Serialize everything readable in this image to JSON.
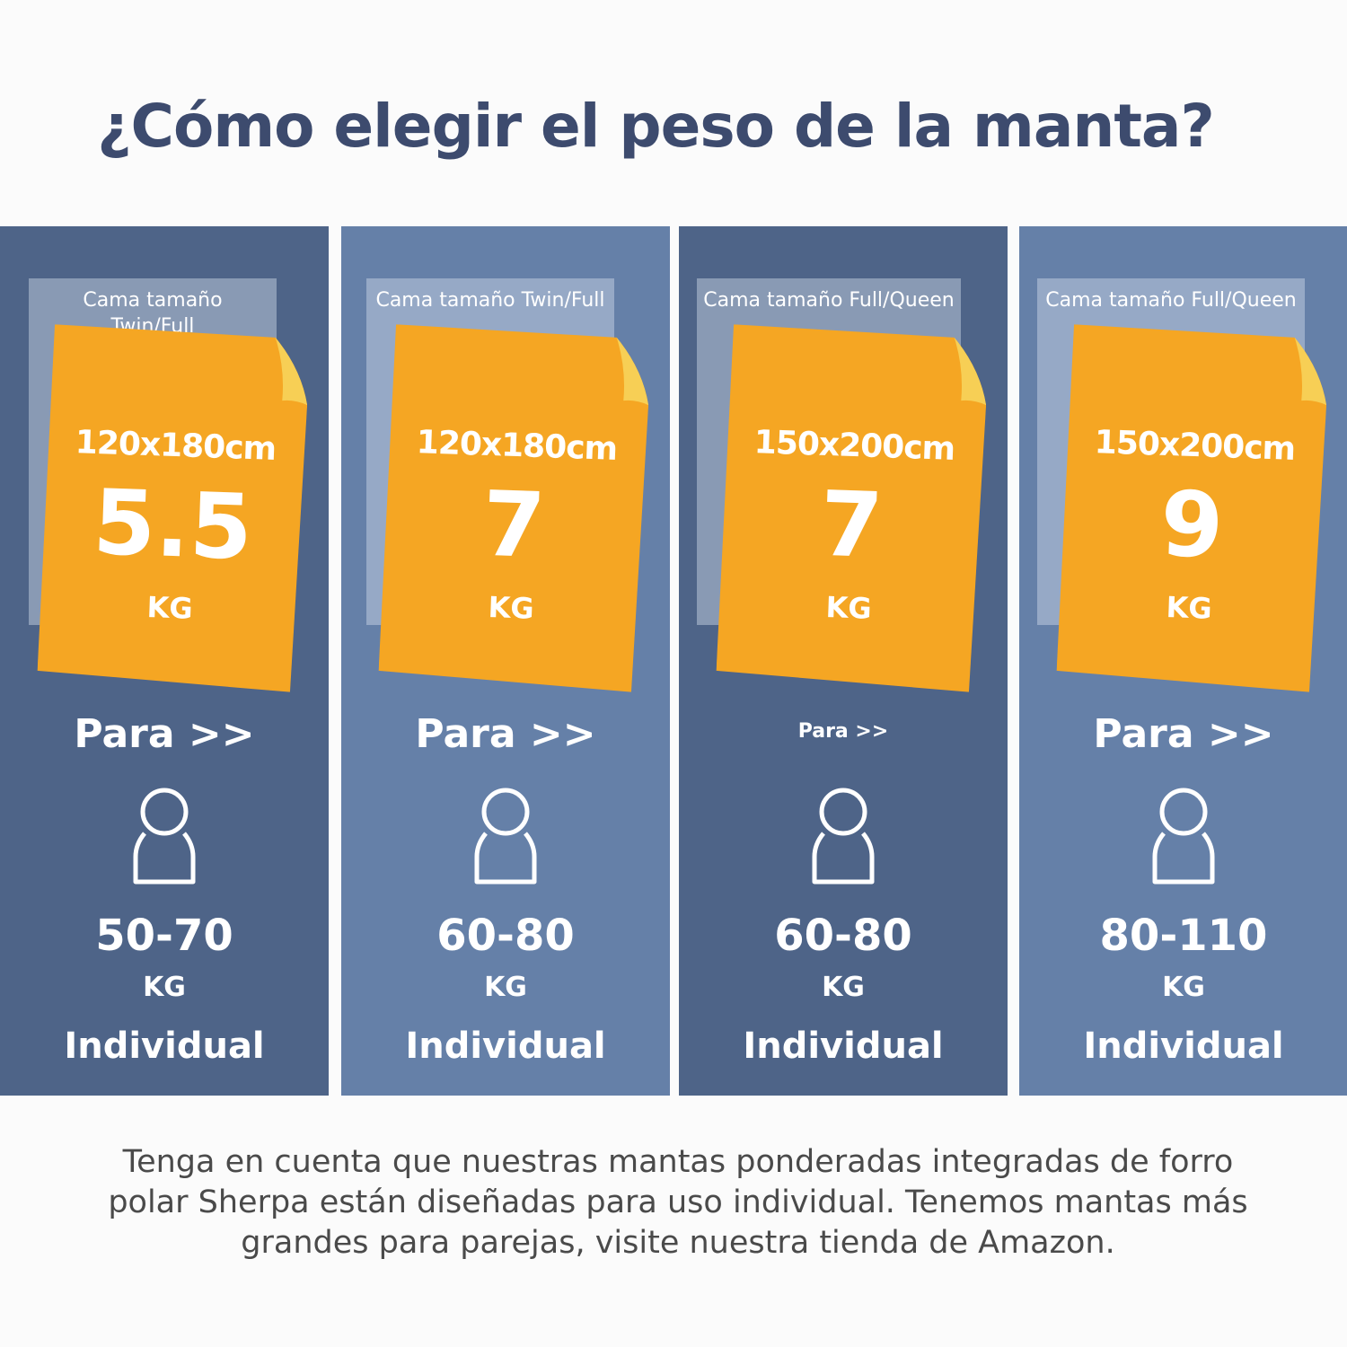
{
  "title": "¿Cómo elegir el peso de la manta?",
  "colors": {
    "dark_column": "#4e6488",
    "light_column": "#6580a8",
    "note": "#f5a623",
    "note_fold": "#f7cf55",
    "title": "#3d4b6e"
  },
  "columns": [
    {
      "bed_label": "Cama tamaño Twin/Full",
      "dimensions": "120x180cm",
      "weight": "5.5",
      "weight_unit": "KG",
      "for_label": "Para >>",
      "icon": "person-outline-icon",
      "range": "50-70",
      "range_unit": "KG",
      "usage": "Individual"
    },
    {
      "bed_label": "Cama tamaño Twin/Full",
      "dimensions": "120x180cm",
      "weight": "7",
      "weight_unit": "KG",
      "for_label": "Para >>",
      "icon": "person-outline-icon",
      "range": "60-80",
      "range_unit": "KG",
      "usage": "Individual"
    },
    {
      "bed_label": "Cama tamaño Full/Queen",
      "dimensions": "150x200cm",
      "weight": "7",
      "weight_unit": "KG",
      "for_label": "Para >>",
      "icon": "person-outline-icon",
      "range": "60-80",
      "range_unit": "KG",
      "usage": "Individual"
    },
    {
      "bed_label": "Cama tamaño Full/Queen",
      "dimensions": "150x200cm",
      "weight": "9",
      "weight_unit": "KG",
      "for_label": "Para >>",
      "icon": "person-outline-icon",
      "range": "80-110",
      "range_unit": "KG",
      "usage": "Individual"
    }
  ],
  "footer": "Tenga en cuenta que nuestras mantas ponderadas integradas de forro polar Sherpa están diseñadas para uso individual. Tenemos mantas más grandes para parejas, visite nuestra tienda de Amazon."
}
